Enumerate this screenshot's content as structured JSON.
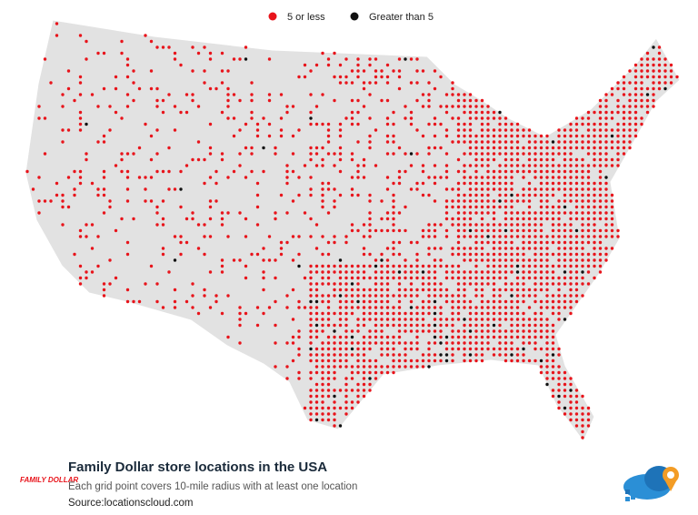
{
  "legend": {
    "items": [
      "5 or less",
      "Greater than 5"
    ]
  },
  "footer": {
    "title": "Family Dollar store locations in the USA",
    "subtitle": "Each grid point covers 10-mile radius with at least one location",
    "source": "Source:locationscloud.com"
  },
  "logo": {
    "text": "FAMILY DOLLAR"
  }
}
